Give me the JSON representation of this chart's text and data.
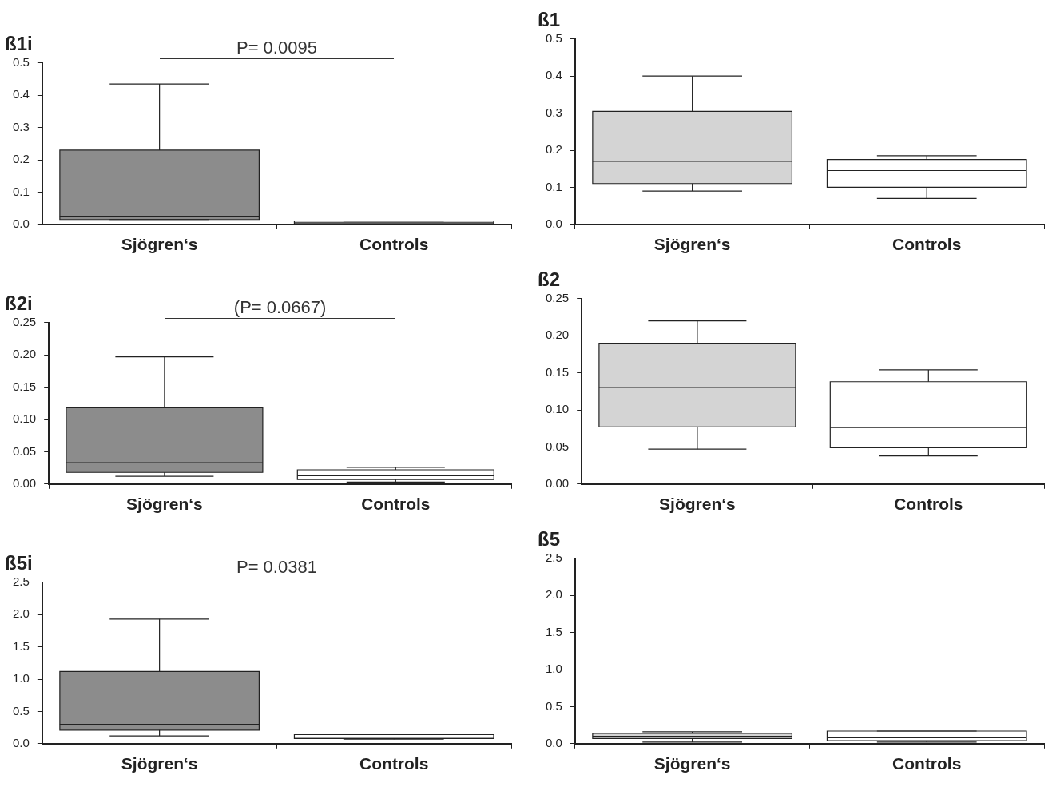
{
  "chart_data": [
    {
      "type": "box",
      "title": "ß1i",
      "categories": [
        "Sjögren‘s",
        "Controls"
      ],
      "colors": [
        "#8c8c8c",
        "#ffffff"
      ],
      "boxes": [
        {
          "low": 0.015,
          "q1": 0.015,
          "median": 0.025,
          "q3": 0.23,
          "high": 0.435
        },
        {
          "low": 0,
          "q1": 0.002,
          "median": 0.005,
          "q3": 0.01,
          "high": 0.01
        }
      ],
      "ylim": [
        0,
        0.5
      ],
      "yticks": [
        {
          "value": 0,
          "label": "0.0"
        },
        0.1,
        0.2,
        0.3,
        0.4,
        0.5
      ],
      "annotations": [
        "P= 0.0095"
      ]
    },
    {
      "type": "box",
      "title": "ß1",
      "categories": [
        "Sjögren‘s",
        "Controls"
      ],
      "colors": [
        "#d4d4d4",
        "#ffffff"
      ],
      "boxes": [
        {
          "low": 0.09,
          "q1": 0.11,
          "median": 0.17,
          "q3": 0.305,
          "high": 0.4
        },
        {
          "low": 0.07,
          "q1": 0.1,
          "median": 0.145,
          "q3": 0.175,
          "high": 0.185
        }
      ],
      "ylim": [
        0,
        0.5
      ],
      "yticks": [
        {
          "value": 0,
          "label": "0.0"
        },
        0.1,
        0.2,
        0.3,
        0.4,
        0.5
      ]
    },
    {
      "type": "box",
      "title": "ß2i",
      "categories": [
        "Sjögren‘s",
        "Controls"
      ],
      "colors": [
        "#8c8c8c",
        "#ffffff"
      ],
      "boxes": [
        {
          "low": 0.012,
          "q1": 0.018,
          "median": 0.033,
          "q3": 0.118,
          "high": 0.197
        },
        {
          "low": 0.003,
          "q1": 0.007,
          "median": 0.013,
          "q3": 0.022,
          "high": 0.026
        }
      ],
      "ylim": [
        0,
        0.25
      ],
      "yticks": [
        {
          "value": 0,
          "label": "0.00"
        },
        0.05,
        {
          "value": 0.1,
          "label": "0.10"
        },
        0.15,
        {
          "value": 0.2,
          "label": "0.20"
        },
        0.25
      ],
      "annotations": [
        "(P= 0.0667)"
      ]
    },
    {
      "type": "box",
      "title": "ß2",
      "categories": [
        "Sjögren‘s",
        "Controls"
      ],
      "colors": [
        "#d4d4d4",
        "#ffffff"
      ],
      "boxes": [
        {
          "low": 0.047,
          "q1": 0.077,
          "median": 0.13,
          "q3": 0.19,
          "high": 0.22
        },
        {
          "low": 0.038,
          "q1": 0.049,
          "median": 0.076,
          "q3": 0.138,
          "high": 0.154
        }
      ],
      "ylim": [
        0,
        0.25
      ],
      "yticks": [
        {
          "value": 0,
          "label": "0.00"
        },
        0.05,
        {
          "value": 0.1,
          "label": "0.10"
        },
        0.15,
        {
          "value": 0.2,
          "label": "0.20"
        },
        0.25
      ]
    },
    {
      "type": "box",
      "title": "ß5i",
      "categories": [
        "Sjögren‘s",
        "Controls"
      ],
      "colors": [
        "#8c8c8c",
        "#ffffff"
      ],
      "boxes": [
        {
          "low": 0.12,
          "q1": 0.21,
          "median": 0.3,
          "q3": 1.12,
          "high": 1.93
        },
        {
          "low": 0.07,
          "q1": 0.08,
          "median": 0.1,
          "q3": 0.14,
          "high": 0.14
        }
      ],
      "ylim": [
        0,
        2.5
      ],
      "yticks": [
        {
          "value": 0,
          "label": "0.0"
        },
        0.5,
        {
          "value": 1,
          "label": "1.0"
        },
        1.5,
        {
          "value": 2,
          "label": "2.0"
        },
        2.5
      ],
      "annotations": [
        "P= 0.0381"
      ]
    },
    {
      "type": "box",
      "title": "ß5",
      "categories": [
        "Sjögren‘s",
        "Controls"
      ],
      "colors": [
        "#d4d4d4",
        "#ffffff"
      ],
      "boxes": [
        {
          "low": 0.02,
          "q1": 0.07,
          "median": 0.1,
          "q3": 0.14,
          "high": 0.16
        },
        {
          "low": 0.02,
          "q1": 0.04,
          "median": 0.08,
          "q3": 0.17,
          "high": 0.17
        }
      ],
      "ylim": [
        0,
        2.5
      ],
      "yticks": [
        {
          "value": 0,
          "label": "0.0"
        },
        0.5,
        {
          "value": 1,
          "label": "1.0"
        },
        1.5,
        {
          "value": 2,
          "label": "2.0"
        },
        2.5
      ]
    }
  ]
}
